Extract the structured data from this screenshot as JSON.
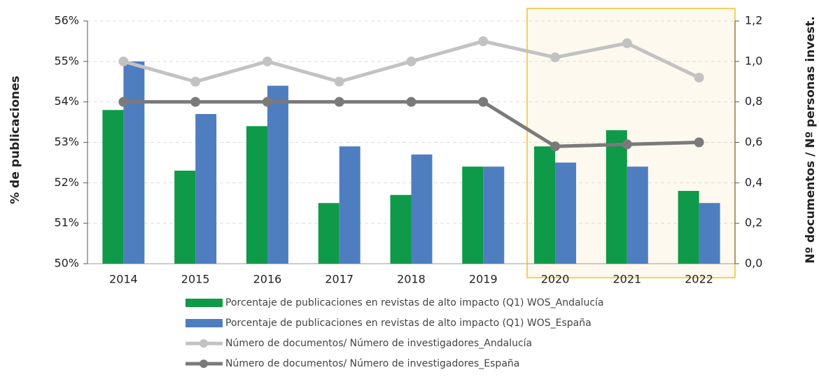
{
  "chart_data": {
    "type": "bar_line",
    "categories": [
      "2014",
      "2015",
      "2016",
      "2017",
      "2018",
      "2019",
      "2020",
      "2021",
      "2022"
    ],
    "ylabel": "% de publicaciones",
    "y2label": "Nº documentos / Nº personas invest.",
    "ylim": [
      50,
      56
    ],
    "yticks": [
      {
        "value": 50,
        "label": "50%"
      },
      {
        "value": 51,
        "label": "51%"
      },
      {
        "value": 52,
        "label": "52%"
      },
      {
        "value": 53,
        "label": "53%"
      },
      {
        "value": 54,
        "label": "54%"
      },
      {
        "value": 55,
        "label": "55%"
      },
      {
        "value": 56,
        "label": "56%"
      }
    ],
    "y2lim": [
      0,
      1.2
    ],
    "y2ticks": [
      {
        "value": 0,
        "label": "0,0"
      },
      {
        "value": 0.2,
        "label": "0,2"
      },
      {
        "value": 0.4,
        "label": "0,4"
      },
      {
        "value": 0.6,
        "label": "0,6"
      },
      {
        "value": 0.8,
        "label": "0,8"
      },
      {
        "value": 1.0,
        "label": "1,0"
      },
      {
        "value": 1.2,
        "label": "1,2"
      }
    ],
    "grid": true,
    "series": [
      {
        "name": "Porcentaje de publicaciones en revistas de alto impacto (Q1) WOS_Andalucía",
        "type": "bar",
        "color": "#0e9a48",
        "values": [
          53.8,
          52.3,
          53.4,
          51.5,
          51.7,
          52.4,
          52.9,
          53.3,
          51.8
        ]
      },
      {
        "name": "Porcentaje de publicaciones en revistas de alto impacto (Q1) WOS_España",
        "type": "bar",
        "color": "#4f7ec0",
        "values": [
          55.0,
          53.7,
          54.4,
          52.9,
          52.7,
          52.4,
          52.5,
          52.4,
          51.5
        ]
      },
      {
        "name": "Número de documentos/ Número de investigadores_Andalucía",
        "type": "line",
        "axis": "y2",
        "color": "#c2c2c2",
        "values": [
          1.0,
          0.9,
          1.0,
          0.9,
          1.0,
          1.1,
          1.02,
          1.09,
          0.92
        ]
      },
      {
        "name": "Número de documentos/ Número de investigadores_España",
        "type": "line",
        "axis": "y2",
        "color": "#7a7a7a",
        "values": [
          0.8,
          0.8,
          0.8,
          0.8,
          0.8,
          0.8,
          0.58,
          0.59,
          0.6
        ]
      }
    ]
  }
}
